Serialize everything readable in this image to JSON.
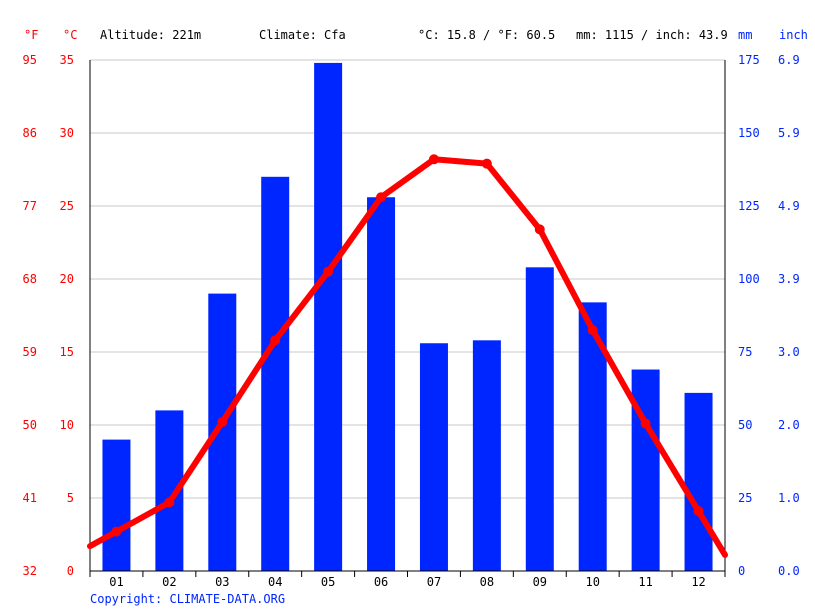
{
  "header": {
    "unit_f": "°F",
    "unit_c": "°C",
    "altitude": "Altitude: 221m",
    "climate": "Climate: Cfa",
    "avg_temp": "°C: 15.8 / °F: 60.5",
    "precip": "mm: 1115 / inch: 43.9",
    "unit_mm": "mm",
    "unit_inch": "inch"
  },
  "copyright": "Copyright: CLIMATE-DATA.ORG",
  "colors": {
    "bars": "#0026ff",
    "line": "#ff0000",
    "axis_temp": "#ff0000",
    "axis_precip": "#0026ff",
    "grid": "#c8c8c8"
  },
  "chart_data": {
    "type": "bar",
    "categories": [
      "01",
      "02",
      "03",
      "04",
      "05",
      "06",
      "07",
      "08",
      "09",
      "10",
      "11",
      "12"
    ],
    "series": [
      {
        "type": "bar",
        "axis": "right",
        "values": [
          45,
          55,
          95,
          135,
          174,
          128,
          78,
          79,
          104,
          92,
          69,
          61
        ]
      },
      {
        "type": "line",
        "axis": "left",
        "values": [
          2.7,
          4.7,
          10.2,
          15.8,
          20.5,
          25.6,
          28.2,
          27.9,
          23.4,
          16.5,
          10.1,
          4.1
        ]
      }
    ],
    "y_left": {
      "ticks_c": [
        "0",
        "5",
        "10",
        "15",
        "20",
        "25",
        "30",
        "35"
      ],
      "ticks_f": [
        "32",
        "41",
        "50",
        "59",
        "68",
        "77",
        "86",
        "95"
      ],
      "ylim": [
        0,
        35
      ]
    },
    "y_right": {
      "ticks_mm": [
        "0",
        "25",
        "50",
        "75",
        "100",
        "125",
        "150",
        "175"
      ],
      "ticks_inch": [
        "0.0",
        "1.0",
        "2.0",
        "3.0",
        "3.9",
        "4.9",
        "5.9",
        "6.9"
      ],
      "ylim": [
        0,
        175
      ]
    },
    "grid": true
  }
}
